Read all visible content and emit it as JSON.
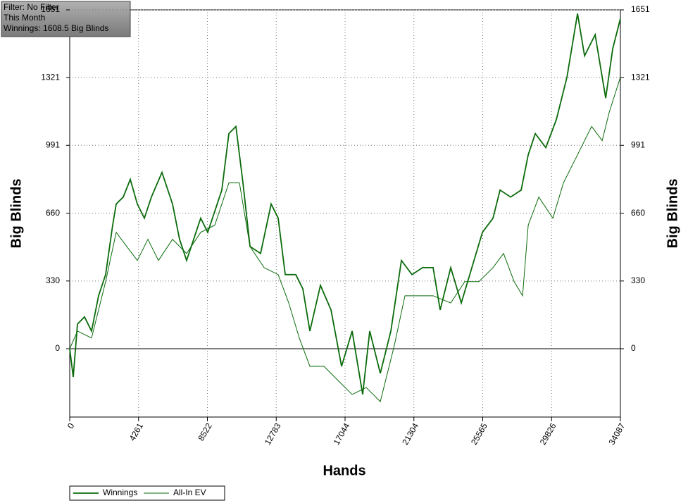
{
  "chart_data": {
    "type": "line",
    "annotations": [
      "Filter: No Filter",
      "This Month",
      "Winnings: 1608.5 Big Blinds"
    ],
    "xlabel": "Hands",
    "ylabel": "Big Blinds",
    "y2label": "Big Blinds",
    "xlim": [
      0,
      34087
    ],
    "xticks": [
      0,
      4261,
      8522,
      12783,
      17044,
      21304,
      25565,
      29826,
      34087
    ],
    "ylim": [
      -333,
      1651
    ],
    "yticks": [
      0,
      330,
      660,
      991,
      1321,
      1651
    ],
    "y2lim": [
      -333,
      1651
    ],
    "y2ticks": [
      0,
      330,
      660,
      991,
      1321,
      1651
    ],
    "grid": true,
    "legend": "bottom-left",
    "series": [
      {
        "name": "Winnings",
        "color": "#0b6b0b",
        "x": [
          0,
          218,
          480,
          915,
          1351,
          1787,
          2223,
          2659,
          2877,
          3313,
          3749,
          4185,
          4621,
          5056,
          5710,
          6364,
          6800,
          7236,
          7672,
          8108,
          8544,
          8980,
          9416,
          9852,
          10288,
          10724,
          11160,
          11814,
          12468,
          12904,
          13340,
          13994,
          14430,
          14866,
          15520,
          16174,
          16828,
          17482,
          18135,
          18571,
          19225,
          19879,
          20533,
          21187,
          21841,
          22495,
          22931,
          23585,
          24239,
          24893,
          25547,
          26201,
          26637,
          27291,
          27945,
          28381,
          28817,
          29471,
          30125,
          30779,
          31433,
          31869,
          32523,
          33177,
          33613,
          34087
        ],
        "values": [
          0,
          -138,
          120,
          155,
          86,
          258,
          361,
          602,
          705,
          739,
          825,
          705,
          636,
          739,
          859,
          705,
          533,
          430,
          533,
          636,
          567,
          670,
          773,
          1048,
          1083,
          808,
          498,
          464,
          705,
          636,
          361,
          361,
          292,
          86,
          309,
          189,
          -86,
          86,
          -223,
          86,
          -120,
          86,
          430,
          361,
          395,
          395,
          189,
          395,
          223,
          395,
          567,
          636,
          773,
          739,
          773,
          945,
          1048,
          980,
          1117,
          1323,
          1633,
          1427,
          1530,
          1221,
          1462,
          1608.5
        ]
      },
      {
        "name": "All-In EV",
        "color": "#0b6b0b",
        "x": [
          0,
          480,
          1351,
          2223,
          2877,
          3531,
          4185,
          4839,
          5492,
          6364,
          7236,
          8108,
          8980,
          9852,
          10506,
          11160,
          12032,
          12904,
          13558,
          14212,
          14866,
          15738,
          16610,
          17482,
          18353,
          19225,
          20097,
          20751,
          21623,
          22495,
          23585,
          24457,
          25329,
          26201,
          26855,
          27509,
          28032,
          28381,
          29035,
          29907,
          30561,
          31433,
          32305,
          32959,
          33395,
          34087
        ],
        "values": [
          0,
          86,
          52,
          327,
          567,
          498,
          430,
          533,
          430,
          533,
          464,
          567,
          602,
          808,
          808,
          498,
          395,
          361,
          223,
          52,
          -86,
          -86,
          -155,
          -223,
          -189,
          -258,
          17,
          258,
          258,
          258,
          223,
          327,
          327,
          395,
          464,
          327,
          258,
          602,
          739,
          636,
          808,
          945,
          1083,
          1014,
          1152,
          1323
        ]
      }
    ]
  }
}
